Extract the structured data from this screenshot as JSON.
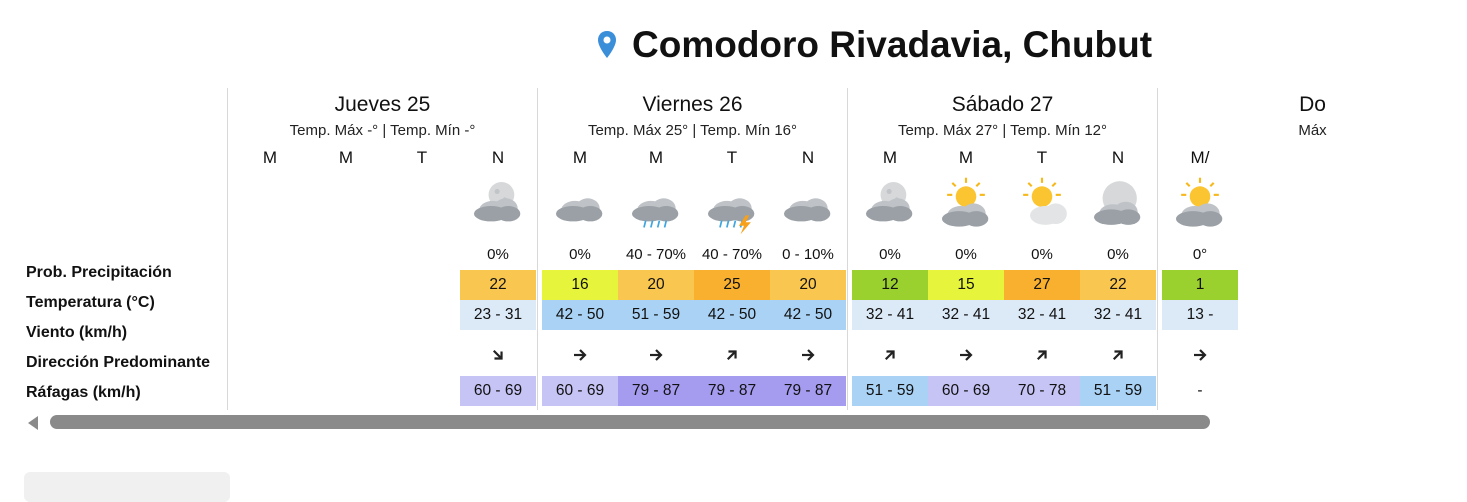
{
  "location": {
    "title": "Comodoro Rivadavia, Chubut",
    "icon": "map-pin-icon",
    "icon_color": "#3b8fd9"
  },
  "row_labels": {
    "precip": "Prob. Precipitación",
    "temp": "Temperatura (°C)",
    "wind": "Viento (km/h)",
    "direction": "Dirección Predominante",
    "gusts": "Ráfagas (km/h)"
  },
  "days": [
    {
      "name": "Jueves 25",
      "temps": "Temp. Máx -° | Temp. Mín -°",
      "slots": [
        {
          "period": "M"
        },
        {
          "period": "M"
        },
        {
          "period": "T"
        },
        {
          "period": "N",
          "icon": "cloudy-night-icon",
          "precip": "0%",
          "temp": "22",
          "temp_color": "#f9c74f",
          "wind": "23 - 31",
          "wind_color": "#dce9f7",
          "direction": "south-east",
          "gust": "60 - 69",
          "gust_color": "#c6c3f5"
        }
      ]
    },
    {
      "name": "Viernes 26",
      "temps": "Temp. Máx 25° | Temp. Mín 16°",
      "slots": [
        {
          "period": "M",
          "icon": "cloudy-icon",
          "precip": "0%",
          "temp": "16",
          "temp_color": "#e6f53c",
          "wind": "42 - 50",
          "wind_color": "#a9d2f5",
          "direction": "east",
          "gust": "60 - 69",
          "gust_color": "#c6c3f5"
        },
        {
          "period": "M",
          "icon": "rain-icon",
          "precip": "40 - 70%",
          "temp": "20",
          "temp_color": "#f9c74f",
          "wind": "51 - 59",
          "wind_color": "#a9d2f5",
          "direction": "east",
          "gust": "79 - 87",
          "gust_color": "#a59cf0"
        },
        {
          "period": "T",
          "icon": "thunderstorm-icon",
          "precip": "40 - 70%",
          "temp": "25",
          "temp_color": "#f8b02e",
          "wind": "42 - 50",
          "wind_color": "#a9d2f5",
          "direction": "north-east",
          "gust": "79 - 87",
          "gust_color": "#a59cf0"
        },
        {
          "period": "N",
          "icon": "cloudy-icon",
          "precip": "0 - 10%",
          "temp": "20",
          "temp_color": "#f9c74f",
          "wind": "42 - 50",
          "wind_color": "#a9d2f5",
          "direction": "east",
          "gust": "79 - 87",
          "gust_color": "#a59cf0"
        }
      ]
    },
    {
      "name": "Sábado 27",
      "temps": "Temp. Máx 27° | Temp. Mín 12°",
      "slots": [
        {
          "period": "M",
          "icon": "cloudy-night-icon",
          "precip": "0%",
          "temp": "12",
          "temp_color": "#9bd12e",
          "wind": "32 - 41",
          "wind_color": "#dce9f7",
          "direction": "north-east",
          "gust": "51 - 59",
          "gust_color": "#a9d2f5"
        },
        {
          "period": "M",
          "icon": "partly-sunny-icon",
          "precip": "0%",
          "temp": "15",
          "temp_color": "#e6f53c",
          "wind": "32 - 41",
          "wind_color": "#dce9f7",
          "direction": "east",
          "gust": "60 - 69",
          "gust_color": "#c6c3f5"
        },
        {
          "period": "T",
          "icon": "partly-cloudy-icon",
          "precip": "0%",
          "temp": "27",
          "temp_color": "#f8b02e",
          "wind": "32 - 41",
          "wind_color": "#dce9f7",
          "direction": "north-east",
          "gust": "70 - 78",
          "gust_color": "#c6c3f5"
        },
        {
          "period": "N",
          "icon": "partly-cloudy-night-icon",
          "precip": "0%",
          "temp": "22",
          "temp_color": "#f9c74f",
          "wind": "32 - 41",
          "wind_color": "#dce9f7",
          "direction": "north-east",
          "gust": "51 - 59",
          "gust_color": "#a9d2f5"
        }
      ]
    },
    {
      "name": "Do",
      "temps": "Máx",
      "slots": [
        {
          "period": "M/",
          "icon": "partly-sunny-icon",
          "precip": "0°",
          "temp": "1",
          "temp_color": "#9bd12e",
          "wind": "13 -",
          "wind_color": "#dce9f7",
          "direction": "east",
          "gust": "-",
          "gust_color": "#ffffff"
        }
      ]
    }
  ]
}
